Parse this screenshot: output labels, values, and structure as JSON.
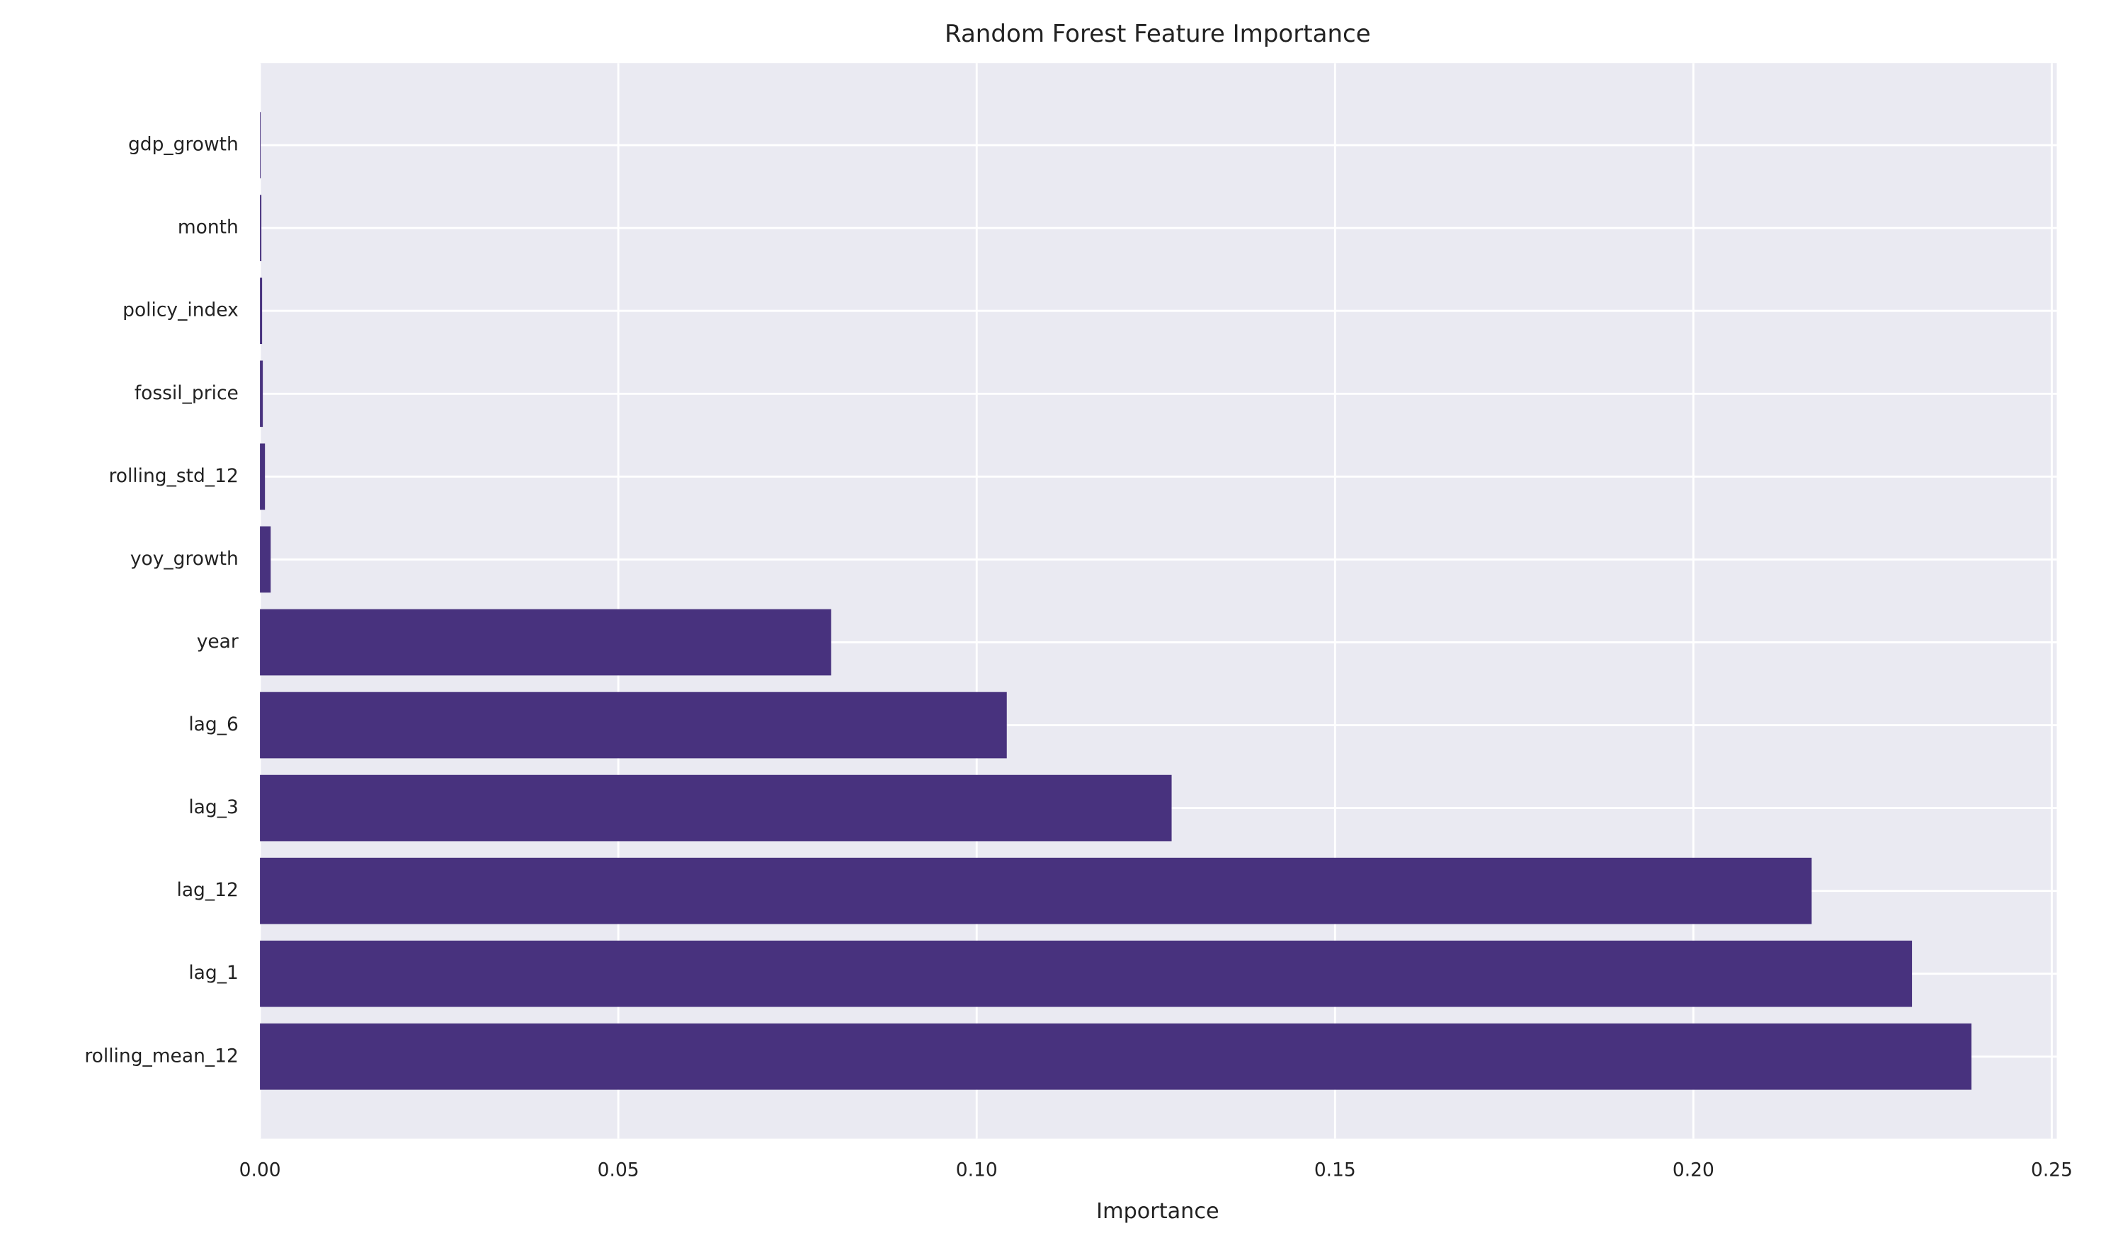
{
  "chart_data": {
    "type": "barh",
    "title": "Random Forest Feature Importance",
    "x_label": "Importance",
    "categories": [
      "rolling_mean_12",
      "lag_1",
      "lag_12",
      "lag_3",
      "lag_6",
      "year",
      "yoy_growth",
      "rolling_std_12",
      "fossil_price",
      "policy_index",
      "month",
      "gdp_growth"
    ],
    "values": [
      0.2388,
      0.2305,
      0.2165,
      0.1272,
      0.1042,
      0.0797,
      0.0015,
      0.0007,
      0.0004,
      0.0003,
      0.0002,
      0.0001
    ],
    "color": "#48327e",
    "xlim": [
      0,
      0.2507
    ],
    "xticks": [
      {
        "value": 0,
        "label": "0.00"
      },
      {
        "value": 0.05,
        "label": "0.05"
      },
      {
        "value": 0.1,
        "label": "0.10"
      },
      {
        "value": 0.15,
        "label": "0.15"
      },
      {
        "value": 0.2,
        "label": "0.20"
      },
      {
        "value": 0.25,
        "label": "0.25"
      }
    ],
    "grid": true
  }
}
